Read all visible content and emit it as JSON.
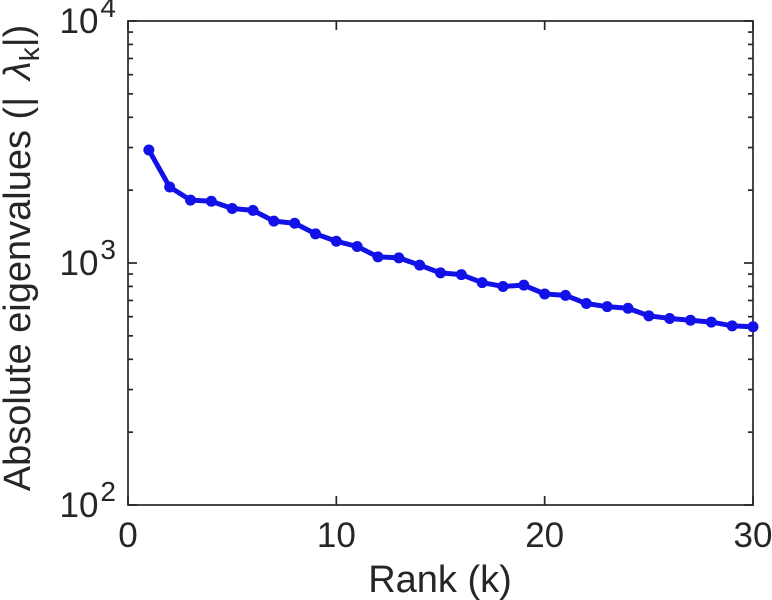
{
  "figure": {
    "background": "#ffffff",
    "axis_color": "#262626",
    "line_color": "#1212e8"
  },
  "chart_data": {
    "type": "line",
    "title": "",
    "xlabel": "Rank (k)",
    "ylabel": "Absolute eigenvalues (| λ_k|)",
    "ylabel_parts": {
      "prefix": "Absolute eigenvalues (|",
      "symbol": "λ",
      "subscript": "k",
      "suffix": "|)"
    },
    "yscale": "log",
    "xlim": [
      0,
      30
    ],
    "ylim": [
      100,
      10000
    ],
    "x_ticks": [
      0,
      10,
      20,
      30
    ],
    "y_tick_exponents": [
      2,
      3,
      4
    ],
    "y_tick_base": "10",
    "grid": false,
    "legend": null,
    "x": [
      1,
      2,
      3,
      4,
      5,
      6,
      7,
      8,
      9,
      10,
      11,
      12,
      13,
      14,
      15,
      16,
      17,
      18,
      19,
      20,
      21,
      22,
      23,
      24,
      25,
      26,
      27,
      28,
      29,
      30
    ],
    "series": [
      {
        "name": "absolute-eigenvalues",
        "marker": "dot",
        "values": [
          2930,
          2060,
          1820,
          1800,
          1680,
          1650,
          1490,
          1460,
          1320,
          1230,
          1170,
          1060,
          1050,
          980,
          910,
          895,
          830,
          800,
          810,
          745,
          735,
          680,
          660,
          650,
          605,
          590,
          580,
          570,
          550,
          545
        ]
      }
    ]
  }
}
